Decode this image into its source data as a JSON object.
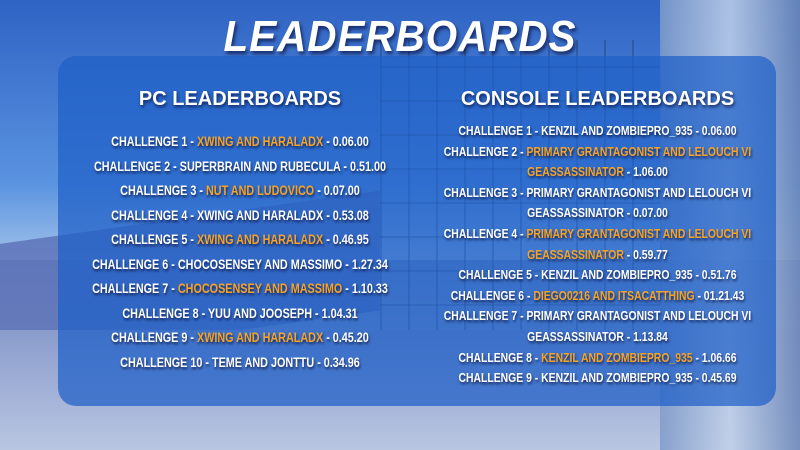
{
  "title": "LEADERBOARDS",
  "colors": {
    "highlight": "#f7a325",
    "panel": "#1e5fc8",
    "text": "#ffffff"
  },
  "pc": {
    "heading": "PC LEADERBOARDS",
    "entries": [
      {
        "challenge": "CHALLENGE 1 - ",
        "players": "XWING AND HARALADX",
        "time": " - 0.06.00",
        "highlight": true
      },
      {
        "challenge": "CHALLENGE 2 - ",
        "players": "SUPERBRAIN AND RUBECULA",
        "time": " - 0.51.00",
        "highlight": false
      },
      {
        "challenge": "CHALLENGE 3 - ",
        "players": "NUT AND LUDOVICO",
        "time": " - 0.07.00",
        "highlight": true
      },
      {
        "challenge": "CHALLENGE 4 - ",
        "players": "XWING AND HARALADX",
        "time": " - 0.53.08",
        "highlight": false
      },
      {
        "challenge": "CHALLENGE 5 - ",
        "players": "XWING AND HARALADX",
        "time": " - 0.46.95",
        "highlight": true
      },
      {
        "challenge": "CHALLENGE 6 - ",
        "players": "CHOCOSENSEY AND MASSIMO",
        "time": " - 1.27.34",
        "highlight": false
      },
      {
        "challenge": "CHALLENGE 7 -  ",
        "players": "CHOCOSENSEY AND MASSIMO",
        "time": " - 1.10.33",
        "highlight": true
      },
      {
        "challenge": "CHALLENGE 8 - ",
        "players": "YUU AND JOOSEPH",
        "time": " - 1.04.31",
        "highlight": false
      },
      {
        "challenge": "CHALLENGE 9 -  ",
        "players": "XWING AND HARALADX",
        "time": " - 0.45.20",
        "highlight": true
      },
      {
        "challenge": "CHALLENGE 10 - ",
        "players": "TEME AND JONTTU",
        "time": " - 0.34.96",
        "highlight": false
      }
    ]
  },
  "console": {
    "heading": "CONSOLE LEADERBOARDS",
    "entries": [
      {
        "challenge": "CHALLENGE 1 - ",
        "players": "KENZIL AND ZOMBIEPRO_935",
        "time": " - 0.06.00",
        "highlight": false
      },
      {
        "challenge": "CHALLENGE 2 - ",
        "players": "PRIMARY GRANTAGONIST AND LELOUCH VI GEASSASSINATOR",
        "time": " - 1.06.00",
        "highlight": true
      },
      {
        "challenge": "CHALLENGE 3 - ",
        "players": "PRIMARY GRANTAGONIST AND LELOUCH VI GEASSASSINATOR",
        "time": " - 0.07.00",
        "highlight": false
      },
      {
        "challenge": "CHALLENGE 4 - ",
        "players": "PRIMARY GRANTAGONIST AND LELOUCH VI GEASSASSINATOR",
        "time": " - 0.59.77",
        "highlight": true
      },
      {
        "challenge": "CHALLENGE 5 - ",
        "players": "KENZIL AND ZOMBIEPRO_935",
        "time": " - 0.51.76",
        "highlight": false
      },
      {
        "challenge": "CHALLENGE 6 - ",
        "players": "DIEGO0216 AND ITSACATTHING",
        "time": " - 01.21.43",
        "highlight": true
      },
      {
        "challenge": "CHALLENGE 7 -  ",
        "players": "PRIMARY GRANTAGONIST AND LELOUCH VI GEASSASSINATOR",
        "time": " - 1.13.84",
        "highlight": false
      },
      {
        "challenge": "CHALLENGE 8 - ",
        "players": "KENZIL AND ZOMBIEPRO_935",
        "time": " - 1.06.66",
        "highlight": true
      },
      {
        "challenge": "CHALLENGE 9 -  ",
        "players": "KENZIL AND ZOMBIEPRO_935",
        "time": " - 0.45.69",
        "highlight": false
      }
    ]
  }
}
